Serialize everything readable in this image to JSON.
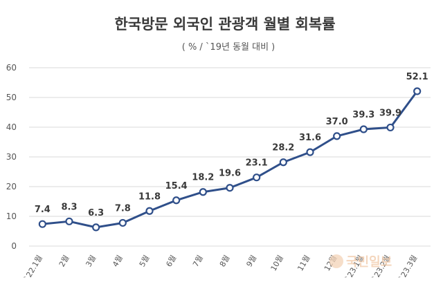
{
  "chart_data": {
    "type": "line",
    "title": "한국방문 외국인 관광객 월별 회복률",
    "subtitle": "( % / `19년 동월 대비 )",
    "categories": [
      "`22.1월",
      "2월",
      "3월",
      "4월",
      "5월",
      "6월",
      "7월",
      "8월",
      "9월",
      "10월",
      "11월",
      "12월",
      "`23.1월",
      "`23.2월",
      "`23.3월"
    ],
    "series": [
      {
        "values": [
          7.4,
          8.3,
          6.3,
          7.8,
          11.8,
          15.4,
          18.2,
          19.6,
          23.1,
          28.2,
          31.6,
          37.0,
          39.3,
          39.9,
          52.1
        ]
      }
    ],
    "data_labels": [
      "7.4",
      "8.3",
      "6.3",
      "7.8",
      "11.8",
      "15.4",
      "18.2",
      "19.6",
      "23.1",
      "28.2",
      "31.6",
      "37.0",
      "39.3",
      "39.9",
      "52.1"
    ],
    "yticks": [
      "0",
      "10",
      "20",
      "30",
      "40",
      "50",
      "60"
    ],
    "ylim": [
      0,
      60
    ],
    "grid": true,
    "line_color": "#2f4f8a",
    "marker_fill": "#ffffff",
    "watermark": "국민일보"
  }
}
